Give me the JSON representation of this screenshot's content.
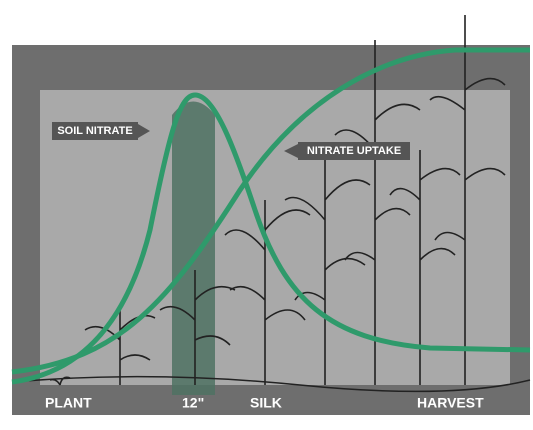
{
  "labels": {
    "soil_nitrate": "SOIL NITRATE",
    "nitrate_uptake": "NITRATE UPTAKE"
  },
  "stages": [
    "PLANT",
    "12\"",
    "SILK",
    "HARVEST"
  ]
}
